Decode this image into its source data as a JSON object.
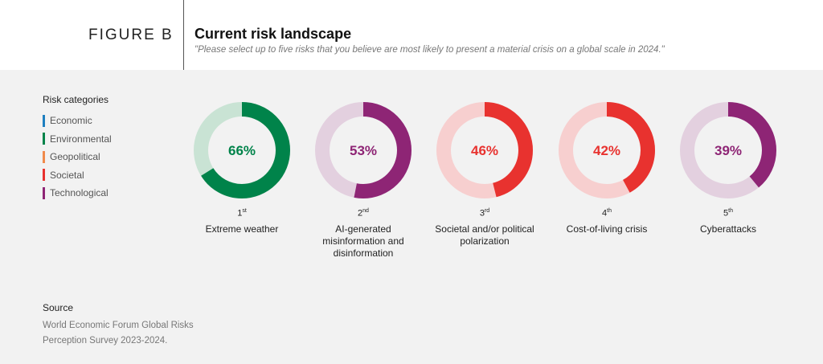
{
  "header": {
    "figure_label": "FIGURE B",
    "title": "Current risk landscape",
    "subtitle": "\"Please select up to five risks that you believe are most likely to present a material crisis on a global scale in 2024.\""
  },
  "legend": {
    "title": "Risk categories",
    "items": [
      {
        "label": "Economic",
        "color": "#1e7fc0"
      },
      {
        "label": "Environmental",
        "color": "#00834a"
      },
      {
        "label": "Geopolitical",
        "color": "#f08a4b"
      },
      {
        "label": "Societal",
        "color": "#e8322f"
      },
      {
        "label": "Technological",
        "color": "#8e2575"
      }
    ]
  },
  "chart_data": {
    "type": "pie",
    "variant": "donut",
    "items": [
      {
        "rank": "1",
        "rank_suffix": "st",
        "name": "Extreme weather",
        "value": 66,
        "label": "66%",
        "category": "Environmental",
        "color": "#00834a",
        "track_color": "#c9e3d4"
      },
      {
        "rank": "2",
        "rank_suffix": "nd",
        "name": "AI-generated misinformation and disinformation",
        "value": 53,
        "label": "53%",
        "category": "Technological",
        "color": "#8e2575",
        "track_color": "#e3d0df"
      },
      {
        "rank": "3",
        "rank_suffix": "rd",
        "name": "Societal and/or political polarization",
        "value": 46,
        "label": "46%",
        "category": "Societal",
        "color": "#e8322f",
        "track_color": "#f7cfcf"
      },
      {
        "rank": "4",
        "rank_suffix": "th",
        "name": "Cost-of-living crisis",
        "value": 42,
        "label": "42%",
        "category": "Societal",
        "color": "#e8322f",
        "track_color": "#f7cfcf"
      },
      {
        "rank": "5",
        "rank_suffix": "th",
        "name": "Cyberattacks",
        "value": 39,
        "label": "39%",
        "category": "Technological",
        "color": "#8e2575",
        "track_color": "#e3d0df"
      }
    ]
  },
  "source": {
    "title": "Source",
    "text": "World Economic Forum Global Risks Perception Survey 2023-2024."
  }
}
